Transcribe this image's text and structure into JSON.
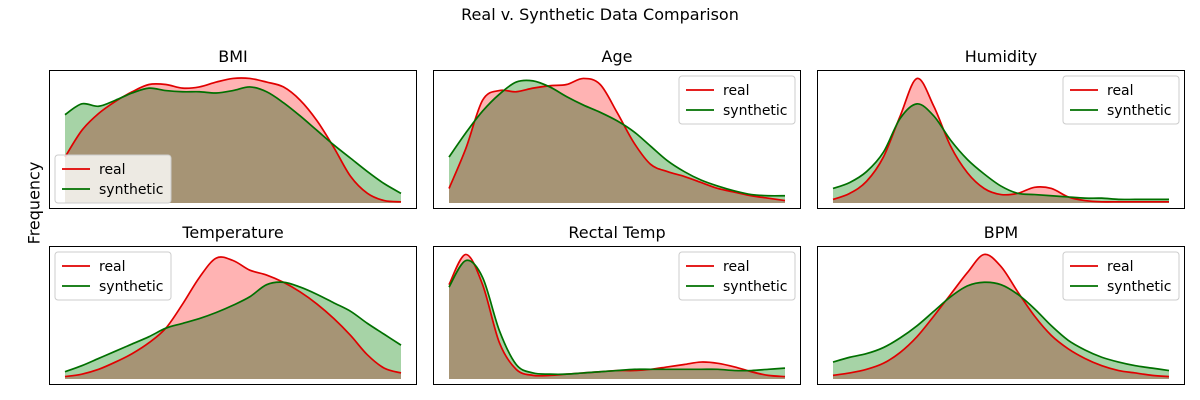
{
  "figure": {
    "title": "Real v. Synthetic Data Comparison",
    "ylabel": "Frequency"
  },
  "colors": {
    "real": "#e00000",
    "real_fill": "#ff9999",
    "synthetic": "#007000",
    "synthetic_fill": "#88c488",
    "overlap_fill": "#b3a37c"
  },
  "chart_data": [
    {
      "type": "area",
      "title": "BMI",
      "legend": "lower-left",
      "xlim": [
        0,
        1
      ],
      "ylim": [
        0,
        1.1
      ],
      "x": [
        0,
        0.05,
        0.1,
        0.15,
        0.2,
        0.25,
        0.3,
        0.35,
        0.4,
        0.45,
        0.5,
        0.55,
        0.6,
        0.65,
        0.7,
        0.75,
        0.8,
        0.85,
        0.9,
        0.95,
        1
      ],
      "series": [
        {
          "name": "real",
          "values": [
            0.38,
            0.6,
            0.74,
            0.84,
            0.92,
            0.98,
            0.98,
            0.95,
            0.96,
            1.0,
            1.03,
            1.03,
            1.0,
            0.96,
            0.85,
            0.68,
            0.46,
            0.22,
            0.08,
            0.02,
            0.01
          ]
        },
        {
          "name": "synthetic",
          "values": [
            0.73,
            0.82,
            0.8,
            0.85,
            0.91,
            0.95,
            0.93,
            0.92,
            0.92,
            0.91,
            0.93,
            0.96,
            0.92,
            0.83,
            0.72,
            0.6,
            0.48,
            0.37,
            0.26,
            0.16,
            0.08
          ]
        }
      ]
    },
    {
      "type": "area",
      "title": "Age",
      "legend": "upper-right",
      "xlim": [
        0,
        1
      ],
      "ylim": [
        0,
        1.1
      ],
      "x": [
        0,
        0.05,
        0.1,
        0.15,
        0.2,
        0.25,
        0.3,
        0.35,
        0.4,
        0.45,
        0.5,
        0.55,
        0.6,
        0.65,
        0.7,
        0.75,
        0.8,
        0.85,
        0.9,
        0.95,
        1
      ],
      "series": [
        {
          "name": "real",
          "values": [
            0.12,
            0.45,
            0.85,
            0.93,
            0.92,
            0.95,
            0.97,
            0.98,
            1.03,
            0.98,
            0.75,
            0.5,
            0.32,
            0.26,
            0.22,
            0.17,
            0.12,
            0.09,
            0.06,
            0.04,
            0.02
          ]
        },
        {
          "name": "synthetic",
          "values": [
            0.38,
            0.58,
            0.76,
            0.9,
            1.0,
            1.01,
            0.96,
            0.88,
            0.81,
            0.75,
            0.68,
            0.59,
            0.47,
            0.35,
            0.26,
            0.19,
            0.14,
            0.1,
            0.07,
            0.06,
            0.06
          ]
        }
      ]
    },
    {
      "type": "area",
      "title": "Humidity",
      "legend": "upper-right",
      "xlim": [
        0,
        1
      ],
      "ylim": [
        0,
        1.1
      ],
      "x": [
        0,
        0.05,
        0.1,
        0.15,
        0.2,
        0.25,
        0.3,
        0.35,
        0.4,
        0.45,
        0.5,
        0.55,
        0.6,
        0.65,
        0.7,
        0.75,
        0.8,
        0.85,
        0.9,
        0.95,
        1
      ],
      "series": [
        {
          "name": "real",
          "values": [
            0.03,
            0.08,
            0.18,
            0.38,
            0.72,
            1.03,
            0.8,
            0.47,
            0.25,
            0.12,
            0.07,
            0.08,
            0.13,
            0.12,
            0.05,
            0.02,
            0.01,
            0.01,
            0.01,
            0.01,
            0.01
          ]
        },
        {
          "name": "synthetic",
          "values": [
            0.12,
            0.17,
            0.26,
            0.42,
            0.7,
            0.82,
            0.72,
            0.52,
            0.36,
            0.24,
            0.14,
            0.08,
            0.07,
            0.06,
            0.05,
            0.04,
            0.04,
            0.03,
            0.03,
            0.03,
            0.03
          ]
        }
      ]
    },
    {
      "type": "area",
      "title": "Temperature",
      "legend": "upper-left",
      "xlim": [
        0,
        1
      ],
      "ylim": [
        0,
        1.1
      ],
      "x": [
        0,
        0.05,
        0.1,
        0.15,
        0.2,
        0.25,
        0.3,
        0.35,
        0.4,
        0.45,
        0.5,
        0.55,
        0.6,
        0.65,
        0.7,
        0.75,
        0.8,
        0.85,
        0.9,
        0.95,
        1
      ],
      "series": [
        {
          "name": "real",
          "values": [
            0.02,
            0.04,
            0.08,
            0.14,
            0.21,
            0.3,
            0.42,
            0.62,
            0.84,
            1.0,
            0.98,
            0.9,
            0.86,
            0.8,
            0.72,
            0.62,
            0.5,
            0.36,
            0.2,
            0.09,
            0.05
          ]
        },
        {
          "name": "synthetic",
          "values": [
            0.06,
            0.11,
            0.17,
            0.23,
            0.29,
            0.35,
            0.42,
            0.46,
            0.5,
            0.55,
            0.61,
            0.68,
            0.78,
            0.8,
            0.76,
            0.7,
            0.63,
            0.56,
            0.46,
            0.37,
            0.28
          ]
        }
      ]
    },
    {
      "type": "area",
      "title": "Rectal Temp",
      "legend": "upper-right",
      "xlim": [
        0,
        1
      ],
      "ylim": [
        0,
        1.1
      ],
      "x": [
        0,
        0.05,
        0.1,
        0.15,
        0.2,
        0.25,
        0.3,
        0.35,
        0.4,
        0.45,
        0.5,
        0.55,
        0.6,
        0.65,
        0.7,
        0.75,
        0.8,
        0.85,
        0.9,
        0.95,
        1
      ],
      "series": [
        {
          "name": "real",
          "values": [
            0.78,
            1.03,
            0.78,
            0.3,
            0.08,
            0.03,
            0.03,
            0.04,
            0.05,
            0.06,
            0.07,
            0.07,
            0.08,
            0.1,
            0.12,
            0.14,
            0.13,
            0.1,
            0.06,
            0.03,
            0.02
          ]
        },
        {
          "name": "synthetic",
          "values": [
            0.76,
            0.98,
            0.84,
            0.4,
            0.12,
            0.05,
            0.04,
            0.04,
            0.05,
            0.06,
            0.07,
            0.08,
            0.08,
            0.08,
            0.08,
            0.08,
            0.08,
            0.07,
            0.07,
            0.08,
            0.09
          ]
        }
      ]
    },
    {
      "type": "area",
      "title": "BPM",
      "legend": "upper-right",
      "xlim": [
        0,
        1
      ],
      "ylim": [
        0,
        1.1
      ],
      "x": [
        0,
        0.05,
        0.1,
        0.15,
        0.2,
        0.25,
        0.3,
        0.35,
        0.4,
        0.45,
        0.5,
        0.55,
        0.6,
        0.65,
        0.7,
        0.75,
        0.8,
        0.85,
        0.9,
        0.95,
        1
      ],
      "series": [
        {
          "name": "real",
          "values": [
            0.03,
            0.05,
            0.08,
            0.13,
            0.22,
            0.35,
            0.52,
            0.7,
            0.88,
            1.03,
            0.93,
            0.72,
            0.52,
            0.36,
            0.25,
            0.17,
            0.11,
            0.07,
            0.05,
            0.03,
            0.02
          ]
        },
        {
          "name": "synthetic",
          "values": [
            0.14,
            0.18,
            0.21,
            0.26,
            0.34,
            0.44,
            0.56,
            0.68,
            0.77,
            0.8,
            0.78,
            0.7,
            0.58,
            0.44,
            0.32,
            0.24,
            0.18,
            0.14,
            0.11,
            0.09,
            0.07
          ]
        }
      ]
    }
  ]
}
